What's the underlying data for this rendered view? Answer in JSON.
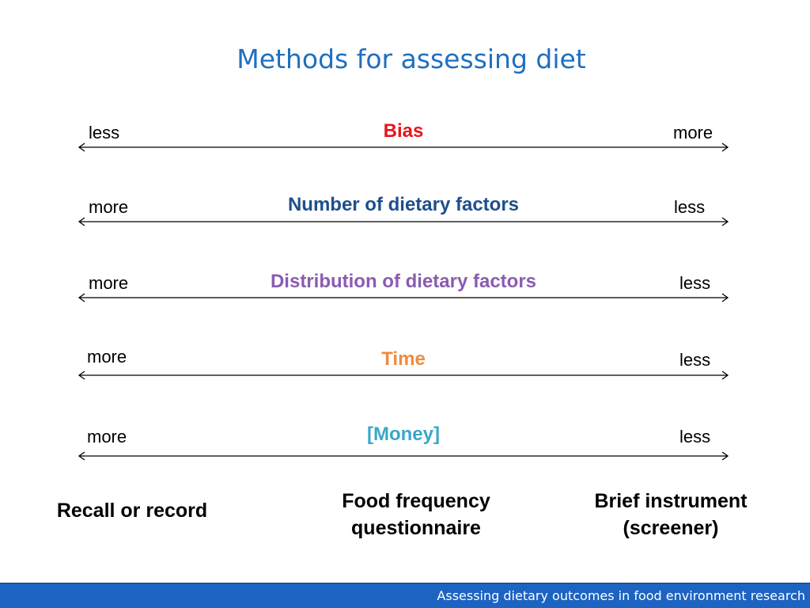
{
  "title": "Methods for assessing diet",
  "rows": [
    {
      "left": "less",
      "center": "Bias",
      "right": "more",
      "color": "#e8141c"
    },
    {
      "left": "more",
      "center": "Number of dietary factors",
      "right": "less",
      "color": "#1f4e8c"
    },
    {
      "left": "more",
      "center": "Distribution of dietary factors",
      "right": "less",
      "color": "#8a5cb0"
    },
    {
      "left": "more",
      "center": "Time",
      "right": "less",
      "color": "#f28a3c"
    },
    {
      "left": "more",
      "center": "[Money]",
      "right": "less",
      "color": "#3aa8c8"
    }
  ],
  "methods": {
    "left": "Recall or record",
    "middle_line1": "Food frequency",
    "middle_line2": "questionnaire",
    "right_line1": "Brief instrument",
    "right_line2": "(screener)"
  },
  "footer": "Assessing dietary outcomes in food environment research",
  "colors": {
    "title": "#1f6fbf",
    "footer_bg": "#1c63c2"
  }
}
